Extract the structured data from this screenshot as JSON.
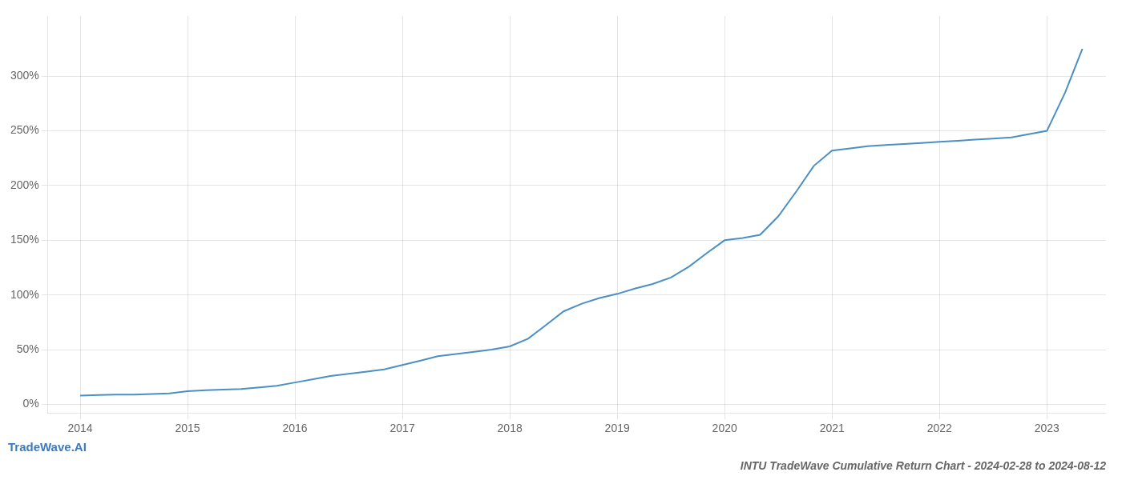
{
  "chart_data": {
    "type": "line",
    "title": "INTU TradeWave Cumulative Return Chart - 2024-02-28 to 2024-08-12",
    "annotations": [
      "TradeWave.AI"
    ],
    "x": [
      2014.0,
      2014.17,
      2014.33,
      2014.5,
      2014.67,
      2014.83,
      2015.0,
      2015.17,
      2015.33,
      2015.5,
      2015.67,
      2015.83,
      2016.0,
      2016.17,
      2016.33,
      2016.5,
      2016.67,
      2016.83,
      2017.0,
      2017.17,
      2017.33,
      2017.5,
      2017.67,
      2017.83,
      2018.0,
      2018.17,
      2018.33,
      2018.5,
      2018.67,
      2018.83,
      2019.0,
      2019.17,
      2019.33,
      2019.5,
      2019.67,
      2019.83,
      2020.0,
      2020.17,
      2020.33,
      2020.5,
      2020.67,
      2020.83,
      2021.0,
      2021.17,
      2021.33,
      2021.5,
      2021.67,
      2021.83,
      2022.0,
      2022.17,
      2022.33,
      2022.5,
      2022.67,
      2022.83,
      2023.0,
      2023.17,
      2023.33
    ],
    "values": [
      0.08,
      0.085,
      0.09,
      0.09,
      0.095,
      0.1,
      0.12,
      0.13,
      0.135,
      0.14,
      0.155,
      0.17,
      0.2,
      0.23,
      0.26,
      0.28,
      0.3,
      0.32,
      0.36,
      0.4,
      0.44,
      0.46,
      0.48,
      0.5,
      0.53,
      0.6,
      0.72,
      0.85,
      0.92,
      0.97,
      1.01,
      1.06,
      1.1,
      1.16,
      1.26,
      1.38,
      1.5,
      1.52,
      1.55,
      1.72,
      1.95,
      2.18,
      2.32,
      2.34,
      2.36,
      2.37,
      2.38,
      2.39,
      2.4,
      2.41,
      2.42,
      2.43,
      2.44,
      2.47,
      2.5,
      2.85,
      3.25
    ],
    "color": "#4a90c4",
    "xlim": [
      2013.7,
      2023.55
    ],
    "ylim": [
      -0.08,
      3.55
    ],
    "xticks": [
      2014,
      2015,
      2016,
      2017,
      2018,
      2019,
      2020,
      2021,
      2022,
      2023
    ],
    "yticks": [
      {
        "value": 0.0,
        "label": "0%"
      },
      {
        "value": 0.5,
        "label": "50%"
      },
      {
        "value": 1.0,
        "label": "100%"
      },
      {
        "value": 1.5,
        "label": "150%"
      },
      {
        "value": 2.0,
        "label": "200%"
      },
      {
        "value": 2.5,
        "label": "250%"
      },
      {
        "value": 3.0,
        "label": "300%"
      }
    ],
    "grid": true
  }
}
